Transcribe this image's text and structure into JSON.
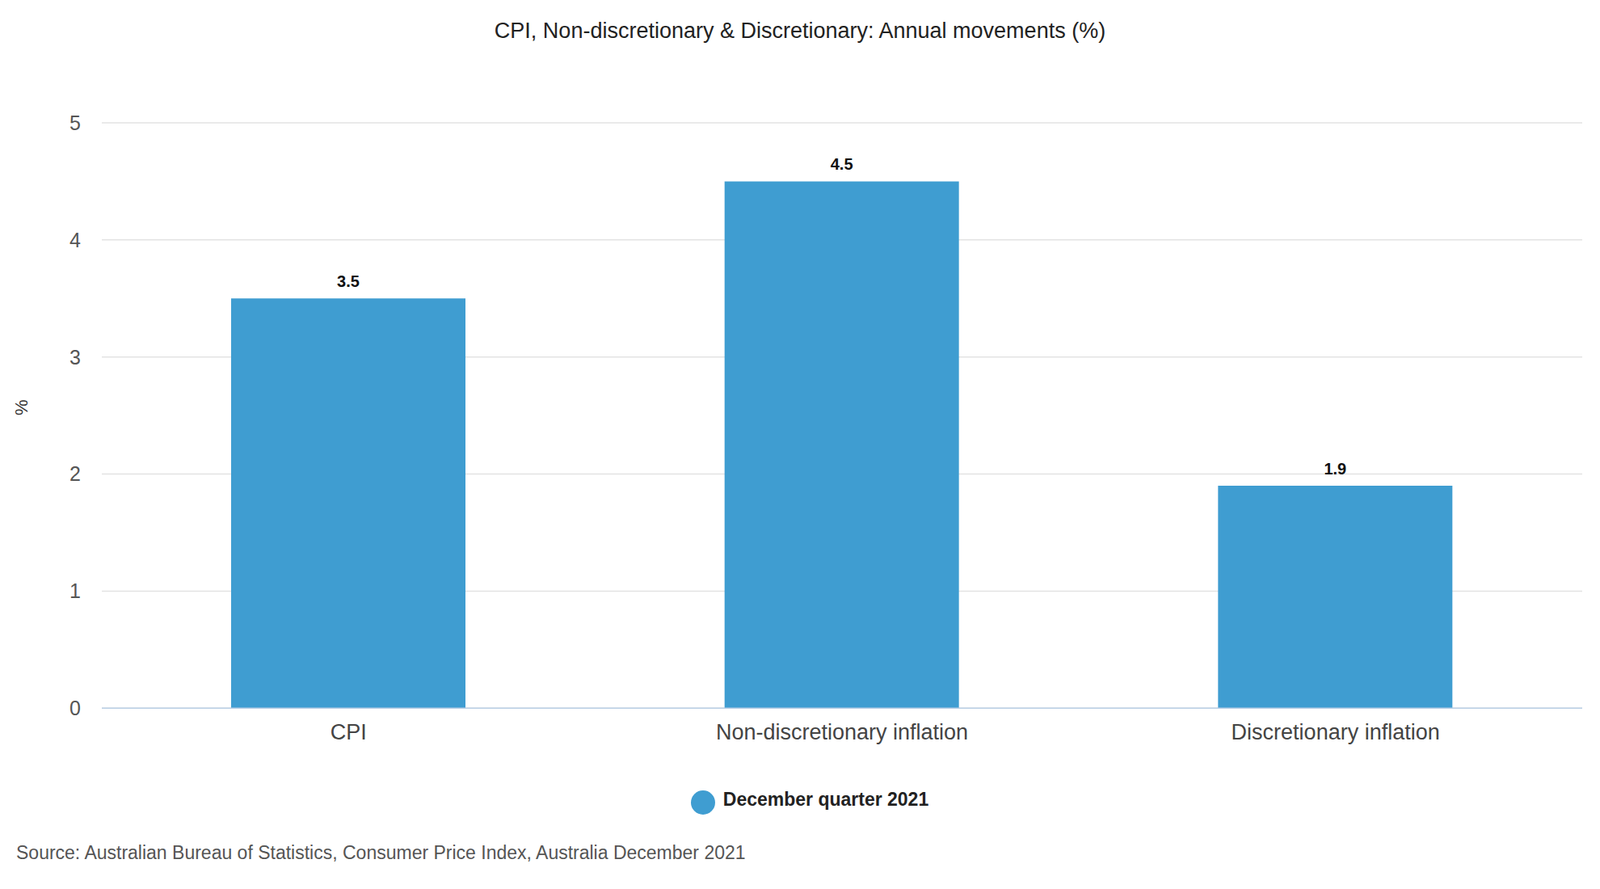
{
  "chart_data": {
    "type": "bar",
    "title": "CPI, Non-discretionary & Discretionary: Annual movements (%)",
    "categories": [
      "CPI",
      "Non-discretionary inflation",
      "Discretionary inflation"
    ],
    "series": [
      {
        "name": "December quarter 2021",
        "color": "#3f9dd1",
        "values": [
          3.5,
          4.5,
          1.9
        ]
      }
    ],
    "ylabel": "%",
    "ylim": [
      0,
      5
    ],
    "yticks": [
      0,
      1,
      2,
      3,
      4,
      5
    ],
    "grid": true,
    "data_labels": true,
    "legend": "bottom",
    "source": "Source: Australian Bureau of Statistics, Consumer Price Index, Australia December 2021"
  }
}
